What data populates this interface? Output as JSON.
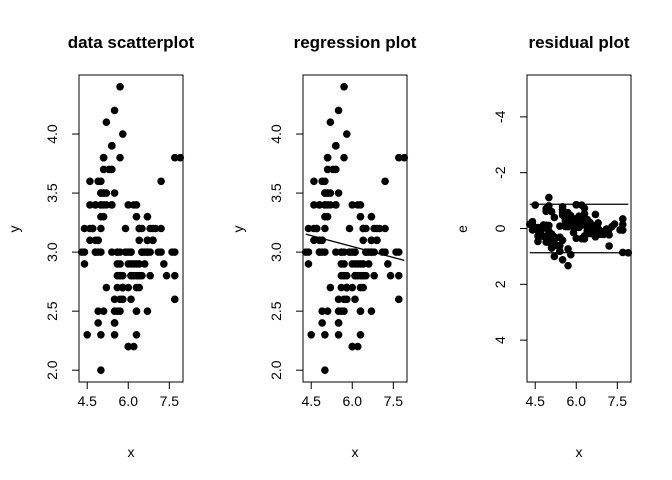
{
  "chart_data": [
    {
      "type": "scatter",
      "title": "data scatterplot",
      "xlabel": "x",
      "ylabel": "y",
      "xlim": [
        4.2,
        8.0
      ],
      "ylim": [
        1.9,
        4.5
      ],
      "xticks": [
        "4.5",
        "6.0",
        "7.5"
      ],
      "yticks": [
        "2.0",
        "2.5",
        "3.0",
        "3.5",
        "4.0"
      ],
      "points": "iris"
    },
    {
      "type": "scatter",
      "title": "regression plot",
      "xlabel": "x",
      "ylabel": "y",
      "xlim": [
        4.2,
        8.0
      ],
      "ylim": [
        1.9,
        4.5
      ],
      "xticks": [
        "4.5",
        "6.0",
        "7.5"
      ],
      "yticks": [
        "2.0",
        "2.5",
        "3.0",
        "3.5",
        "4.0"
      ],
      "points": "iris",
      "regression_line": {
        "intercept": 3.419,
        "slope": -0.0619
      }
    },
    {
      "type": "scatter",
      "title": "residual plot",
      "xlabel": "x",
      "ylabel": "e",
      "xlim": [
        4.2,
        8.0
      ],
      "ylim": [
        5.5,
        -5.5
      ],
      "xticks": [
        "4.5",
        "6.0",
        "7.5"
      ],
      "yticks": [
        "-4",
        "-2",
        "0",
        "2",
        "4"
      ],
      "points": "residuals",
      "bands": [
        -0.87,
        0.87
      ]
    }
  ],
  "iris": {
    "x": [
      5.1,
      4.9,
      4.7,
      4.6,
      5.0,
      5.4,
      4.6,
      5.0,
      4.4,
      4.9,
      5.4,
      4.8,
      4.8,
      4.3,
      5.8,
      5.7,
      5.4,
      5.1,
      5.7,
      5.1,
      5.4,
      5.1,
      4.6,
      5.1,
      4.8,
      5.0,
      5.0,
      5.2,
      5.2,
      4.7,
      4.8,
      5.4,
      5.2,
      5.5,
      4.9,
      5.0,
      5.5,
      4.9,
      4.4,
      5.1,
      5.0,
      4.5,
      4.4,
      5.0,
      5.1,
      4.8,
      5.1,
      4.6,
      5.3,
      5.0,
      7.0,
      6.4,
      6.9,
      5.5,
      6.5,
      5.7,
      6.3,
      4.9,
      6.6,
      5.2,
      5.0,
      5.9,
      6.0,
      6.1,
      5.6,
      6.7,
      5.6,
      5.8,
      6.2,
      5.6,
      5.9,
      6.1,
      6.3,
      6.1,
      6.4,
      6.6,
      6.8,
      6.7,
      6.0,
      5.7,
      5.5,
      5.5,
      5.8,
      6.0,
      5.4,
      6.0,
      6.7,
      6.3,
      5.6,
      5.5,
      5.5,
      6.1,
      5.8,
      5.0,
      5.6,
      5.7,
      5.7,
      6.2,
      5.1,
      5.7,
      6.3,
      5.8,
      7.1,
      6.3,
      6.5,
      7.6,
      4.9,
      7.3,
      6.7,
      7.2,
      6.5,
      6.4,
      6.8,
      5.7,
      5.8,
      6.4,
      6.5,
      7.7,
      7.7,
      6.0,
      6.9,
      5.6,
      7.7,
      6.3,
      6.7,
      7.2,
      6.2,
      6.1,
      6.4,
      7.2,
      7.4,
      7.9,
      6.4,
      6.3,
      6.1,
      7.7,
      6.3,
      6.4,
      6.0,
      6.9,
      6.7,
      6.9,
      5.8,
      6.8,
      6.7,
      6.7,
      6.3,
      6.5,
      6.2,
      5.9
    ],
    "y": [
      3.5,
      3.0,
      3.2,
      3.1,
      3.6,
      3.9,
      3.4,
      3.4,
      2.9,
      3.1,
      3.7,
      3.4,
      3.0,
      3.0,
      4.0,
      4.4,
      3.9,
      3.5,
      3.8,
      3.8,
      3.4,
      3.7,
      3.6,
      3.3,
      3.4,
      3.0,
      3.4,
      3.5,
      3.4,
      3.2,
      3.1,
      3.4,
      4.1,
      4.2,
      3.1,
      3.2,
      3.5,
      3.6,
      3.0,
      3.4,
      3.5,
      2.3,
      3.2,
      3.5,
      3.8,
      3.0,
      3.8,
      3.2,
      3.7,
      3.3,
      3.2,
      3.2,
      3.1,
      2.3,
      2.8,
      2.8,
      3.3,
      2.4,
      2.9,
      2.7,
      2.0,
      3.0,
      2.2,
      2.9,
      2.9,
      3.1,
      3.0,
      2.7,
      2.2,
      2.5,
      3.2,
      2.8,
      2.5,
      2.8,
      2.9,
      3.0,
      2.8,
      3.0,
      2.9,
      2.6,
      2.4,
      2.4,
      2.7,
      2.7,
      3.0,
      3.4,
      3.1,
      2.3,
      3.0,
      2.5,
      2.6,
      3.0,
      2.6,
      2.3,
      2.7,
      3.0,
      2.9,
      2.9,
      2.5,
      2.8,
      3.3,
      2.7,
      3.0,
      2.9,
      3.0,
      3.0,
      2.5,
      2.9,
      2.5,
      3.6,
      3.2,
      2.7,
      3.0,
      2.5,
      2.8,
      3.2,
      3.0,
      3.8,
      2.6,
      2.2,
      3.2,
      2.8,
      2.8,
      2.7,
      3.3,
      3.2,
      2.8,
      3.0,
      2.8,
      3.0,
      2.8,
      3.8,
      2.8,
      2.8,
      2.6,
      3.0,
      3.4,
      3.1,
      3.0,
      3.1,
      3.1,
      3.1,
      2.7,
      3.2,
      3.3,
      3.0,
      2.5,
      3.0,
      3.4,
      3.0
    ]
  }
}
